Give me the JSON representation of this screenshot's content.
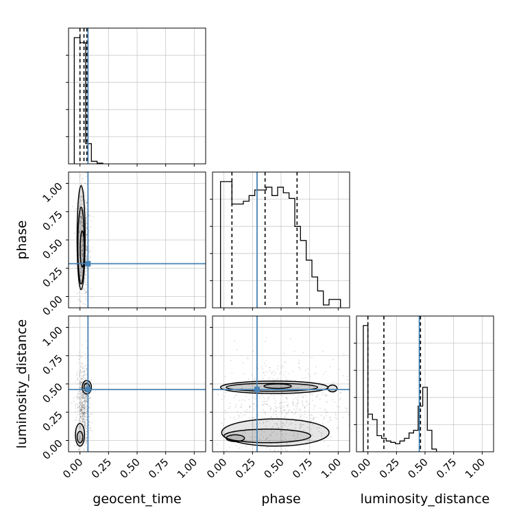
{
  "chart_data": {
    "type": "corner",
    "parameters": [
      "geocent_time",
      "phase",
      "luminosity_distance"
    ],
    "axis_range": [
      -0.1,
      1.1
    ],
    "ticks": [
      0.0,
      0.25,
      0.5,
      0.75,
      1.0
    ],
    "tick_labels": [
      "0.00",
      "0.25",
      "0.50",
      "0.75",
      "1.00"
    ],
    "grid": true,
    "colors": {
      "truth": "#4682b4",
      "hist": "#000000",
      "quantile": "#000000"
    },
    "truths": {
      "geocent_time": 0.07,
      "phase": 0.29,
      "luminosity_distance": 0.45
    },
    "marginals": {
      "geocent_time": {
        "bin_width": 0.05,
        "bin_start": -0.05,
        "values": [
          1.0,
          0.96,
          0.16,
          0.02,
          0.005
        ],
        "quantiles": [
          0.0,
          0.035,
          0.06
        ]
      },
      "phase": {
        "bin_width": 0.05,
        "bin_start": -0.03,
        "values": [
          0.9,
          0.9,
          0.74,
          0.74,
          0.76,
          0.8,
          0.84,
          0.84,
          0.86,
          0.8,
          0.86,
          0.82,
          0.78,
          0.58,
          0.48,
          0.34,
          0.22,
          0.12,
          0.02,
          0.06,
          0.06
        ],
        "quantiles": [
          0.07,
          0.36,
          0.64
        ]
      },
      "luminosity_distance": {
        "bin_width": 0.04,
        "bin_start": -0.04,
        "values": [
          0.94,
          0.28,
          0.24,
          0.12,
          0.1,
          0.08,
          0.07,
          0.06,
          0.08,
          0.1,
          0.14,
          0.16,
          0.34,
          0.48,
          0.16,
          0.02
        ],
        "quantiles": [
          0.0,
          0.14,
          0.46
        ]
      }
    },
    "pairs": [
      {
        "x": "geocent_time",
        "y": "phase",
        "contours": [
          {
            "cx": 0.01,
            "cy": 0.52,
            "rx": 0.035,
            "ry": 0.46
          },
          {
            "cx": 0.01,
            "cy": 0.45,
            "rx": 0.028,
            "ry": 0.34
          },
          {
            "cx": 0.02,
            "cy": 0.42,
            "rx": 0.018,
            "ry": 0.16
          }
        ],
        "scatter_spread": [
          0.05,
          0.32
        ],
        "scatter_center": [
          0.03,
          0.5
        ]
      },
      {
        "x": "geocent_time",
        "y": "luminosity_distance",
        "contours": [
          {
            "cx": 0.06,
            "cy": 0.47,
            "rx": 0.04,
            "ry": 0.06
          },
          {
            "cx": 0.06,
            "cy": 0.47,
            "rx": 0.025,
            "ry": 0.035
          },
          {
            "cx": 0.0,
            "cy": 0.05,
            "rx": 0.04,
            "ry": 0.1
          },
          {
            "cx": 0.0,
            "cy": 0.03,
            "rx": 0.025,
            "ry": 0.05
          }
        ],
        "scatter_spread": [
          0.05,
          0.25
        ],
        "scatter_center": [
          0.03,
          0.3
        ]
      },
      {
        "x": "phase",
        "y": "luminosity_distance",
        "contours": [
          {
            "cx": 0.44,
            "cy": 0.47,
            "rx": 0.47,
            "ry": 0.055
          },
          {
            "cx": 0.42,
            "cy": 0.47,
            "rx": 0.4,
            "ry": 0.035
          },
          {
            "cx": 0.47,
            "cy": 0.48,
            "rx": 0.12,
            "ry": 0.02
          },
          {
            "cx": 0.95,
            "cy": 0.46,
            "rx": 0.04,
            "ry": 0.03
          },
          {
            "cx": 0.45,
            "cy": 0.07,
            "rx": 0.47,
            "ry": 0.12
          },
          {
            "cx": 0.38,
            "cy": 0.04,
            "rx": 0.38,
            "ry": 0.06
          },
          {
            "cx": 0.1,
            "cy": 0.02,
            "rx": 0.08,
            "ry": 0.03
          }
        ],
        "scatter_spread": [
          0.5,
          0.3
        ],
        "scatter_center": [
          0.5,
          0.28
        ]
      }
    ]
  }
}
